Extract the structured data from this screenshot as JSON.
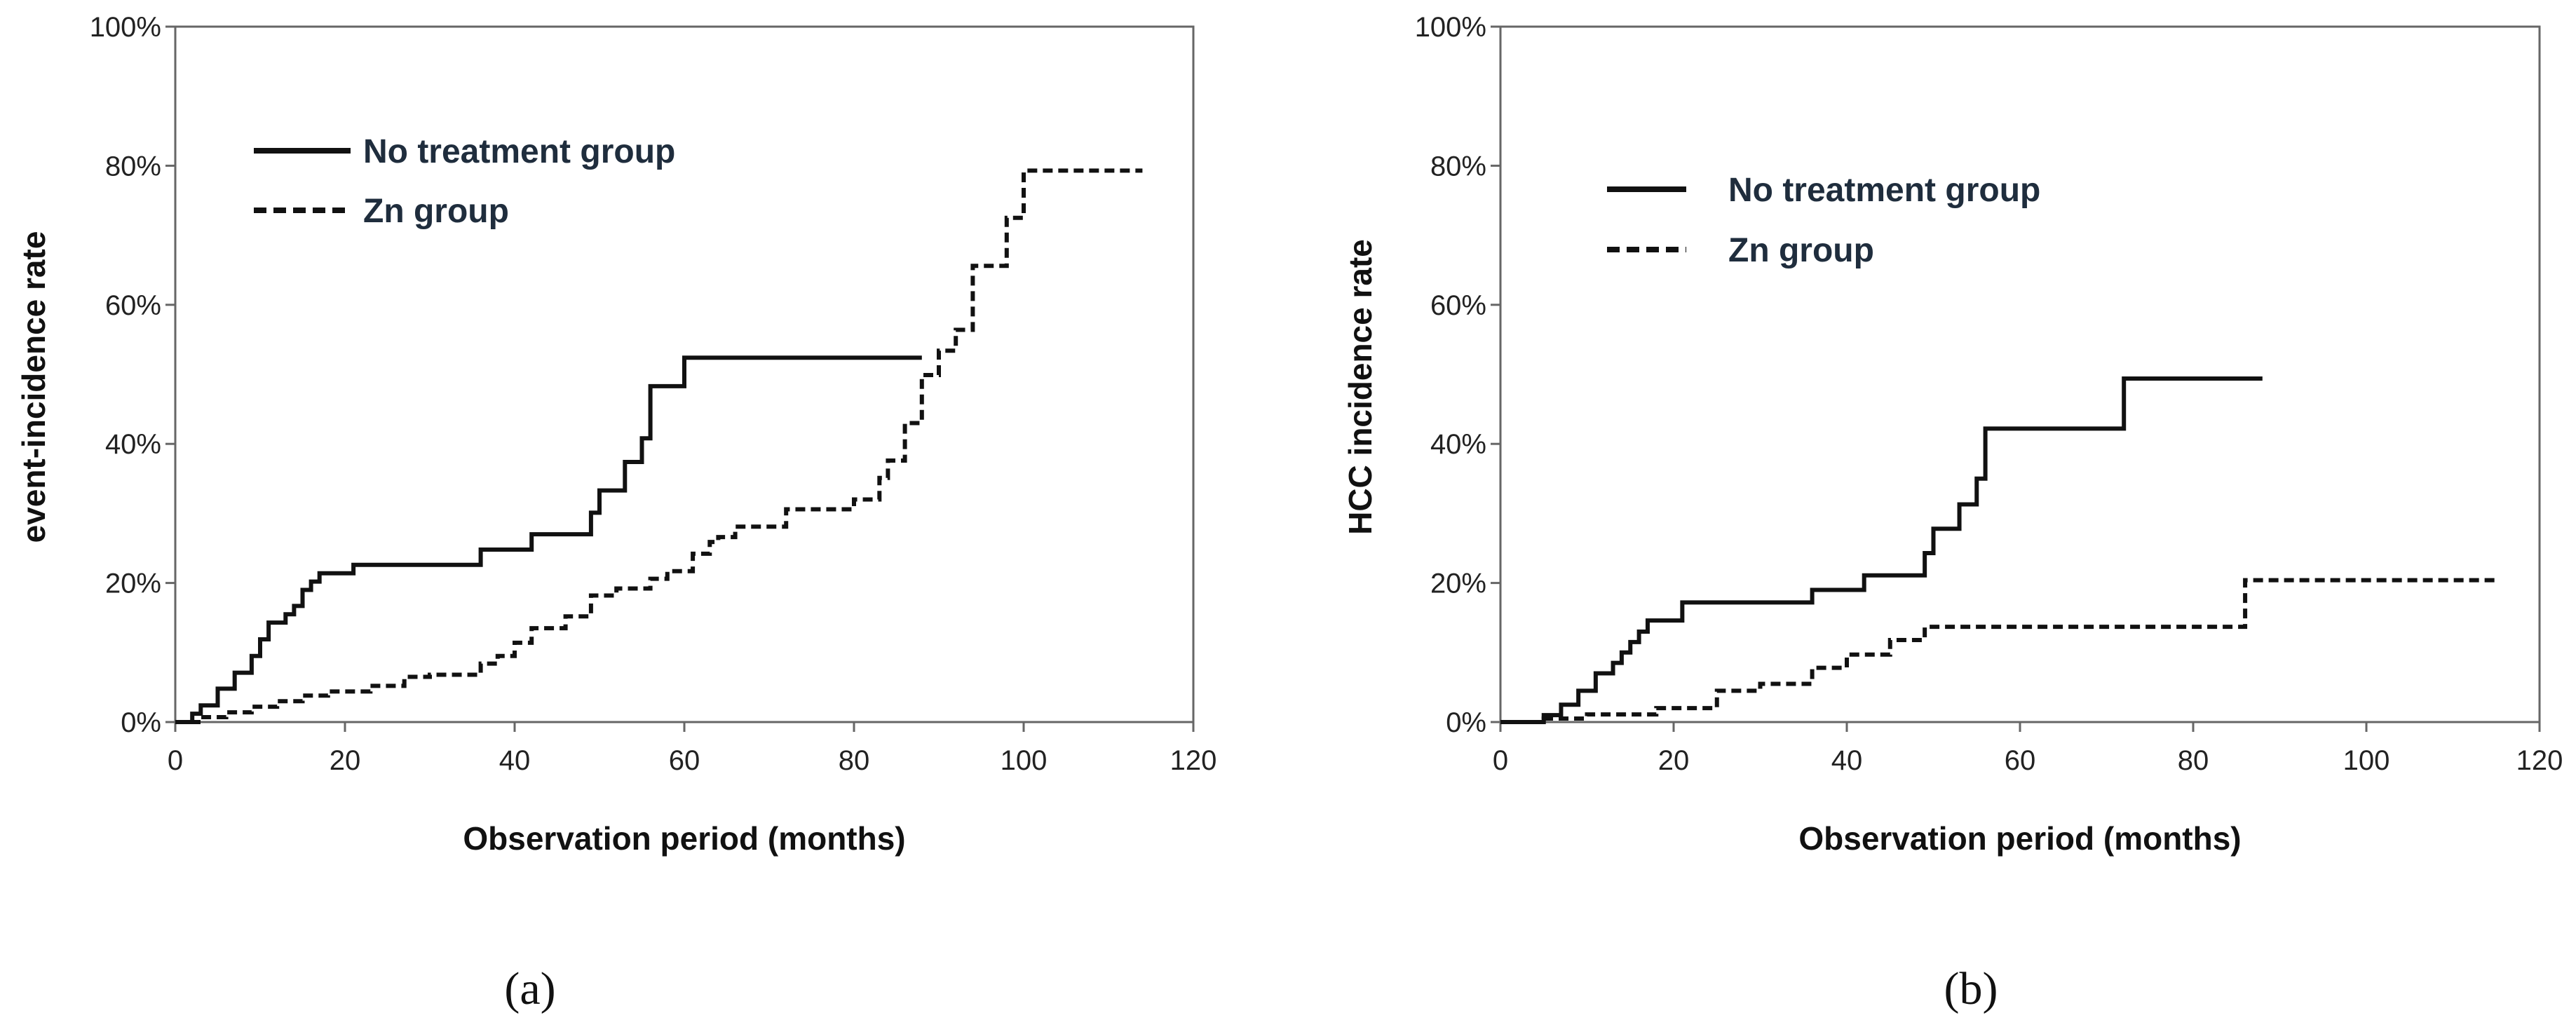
{
  "chart_data": [
    {
      "type": "line",
      "step": true,
      "panel_label": "(a)",
      "xlabel": "Observation period (months)",
      "ylabel": "event-incidence rate",
      "xlim": [
        0,
        120
      ],
      "ylim": [
        0,
        100
      ],
      "x_ticks": [
        "0",
        "20",
        "40",
        "60",
        "80",
        "100",
        "120"
      ],
      "y_ticks": [
        "0%",
        "20%",
        "40%",
        "60%",
        "80%",
        "100%"
      ],
      "legend_placement": "top-left",
      "series": [
        {
          "name": "No treatment group",
          "style": "solid",
          "x": [
            0,
            2,
            3,
            5,
            7,
            9,
            10,
            11,
            13,
            14,
            15,
            16,
            17,
            21,
            36,
            42,
            49,
            50,
            53,
            55,
            56,
            60,
            88
          ],
          "y": [
            0,
            1.2,
            2.4,
            4.8,
            7.1,
            9.5,
            11.9,
            14.3,
            15.5,
            16.7,
            19.0,
            20.2,
            21.4,
            22.6,
            24.8,
            27.0,
            30.1,
            33.3,
            37.4,
            40.8,
            48.3,
            52.4,
            52.4
          ]
        },
        {
          "name": "Zn group",
          "style": "dashed",
          "x": [
            0,
            3,
            6,
            9,
            12,
            15,
            18,
            23,
            27,
            30,
            36,
            38,
            40,
            42,
            46,
            49,
            52,
            56,
            58,
            61,
            63,
            64,
            66,
            68,
            72,
            76,
            80,
            83,
            84,
            86,
            88,
            90,
            92,
            94,
            98,
            100,
            114
          ],
          "y": [
            0,
            0.7,
            1.4,
            2.2,
            3.0,
            3.8,
            4.4,
            5.2,
            6.5,
            6.8,
            8.4,
            9.5,
            11.4,
            13.5,
            15.2,
            18.2,
            19.2,
            20.6,
            21.7,
            24.2,
            25.9,
            26.6,
            28.1,
            28.1,
            30.6,
            30.6,
            32.0,
            35.1,
            37.6,
            43.0,
            49.9,
            53.4,
            56.4,
            65.6,
            72.5,
            79.3,
            79.3
          ]
        }
      ]
    },
    {
      "type": "line",
      "step": true,
      "panel_label": "(b)",
      "xlabel": "Observation period (months)",
      "ylabel": "HCC incidence rate",
      "xlim": [
        0,
        120
      ],
      "ylim": [
        0,
        100
      ],
      "x_ticks": [
        "0",
        "20",
        "40",
        "60",
        "80",
        "100",
        "120"
      ],
      "y_ticks": [
        "0%",
        "20%",
        "40%",
        "60%",
        "80%",
        "100%"
      ],
      "legend_placement": "top-left",
      "series": [
        {
          "name": "No treatment group",
          "style": "solid",
          "x": [
            0,
            5,
            7,
            9,
            11,
            13,
            14,
            15,
            16,
            17,
            21,
            36,
            42,
            49,
            50,
            53,
            55,
            56,
            72,
            88
          ],
          "y": [
            0,
            1.0,
            2.5,
            4.5,
            7.0,
            8.5,
            10.0,
            11.5,
            13.0,
            14.6,
            17.2,
            19.0,
            21.1,
            24.3,
            27.8,
            31.3,
            35.0,
            42.2,
            49.4,
            49.4
          ]
        },
        {
          "name": "Zn group",
          "style": "dashed",
          "x": [
            0,
            5,
            10,
            18,
            25,
            30,
            36,
            40,
            45,
            49,
            86,
            115
          ],
          "y": [
            0,
            0.5,
            1.1,
            2.0,
            4.5,
            5.5,
            7.8,
            9.7,
            11.8,
            13.7,
            20.4,
            20.4
          ]
        }
      ]
    }
  ]
}
